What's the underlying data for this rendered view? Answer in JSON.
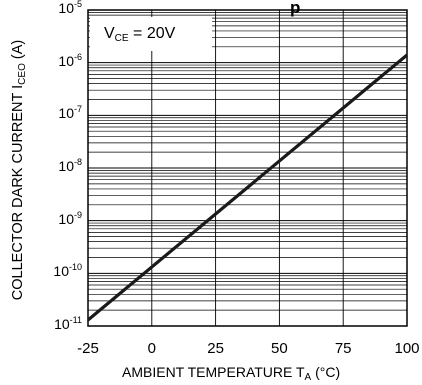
{
  "title_fragment": "p",
  "chart_data": {
    "type": "line",
    "title": "",
    "xlabel": {
      "main": "AMBIENT TEMPERATURE T",
      "sub": "A",
      "unit": " (°C)"
    },
    "ylabel": {
      "main": "COLLECTOR DARK CURRENT I",
      "sub": "CEO",
      "unit": " (A)"
    },
    "xlim": [
      -25,
      100
    ],
    "ylim": [
      1e-11,
      1e-05
    ],
    "yscale": "log",
    "grid": true,
    "xticks": [
      "-25",
      "0",
      "25",
      "50",
      "75",
      "100"
    ],
    "yticks": [
      {
        "base": "10",
        "exp": "-5"
      },
      {
        "base": "10",
        "exp": "-6"
      },
      {
        "base": "10",
        "exp": "-7"
      },
      {
        "base": "10",
        "exp": "-8"
      },
      {
        "base": "10",
        "exp": "-9"
      },
      {
        "base": "10",
        "exp": "-10"
      },
      {
        "base": "10",
        "exp": "-11"
      }
    ],
    "annotation": {
      "main": "V",
      "sub": "CE",
      "rest": " = 20V"
    },
    "series": [
      {
        "x": [
          -25,
          100
        ],
        "y": [
          1.3e-11,
          1.4e-06
        ]
      }
    ]
  }
}
